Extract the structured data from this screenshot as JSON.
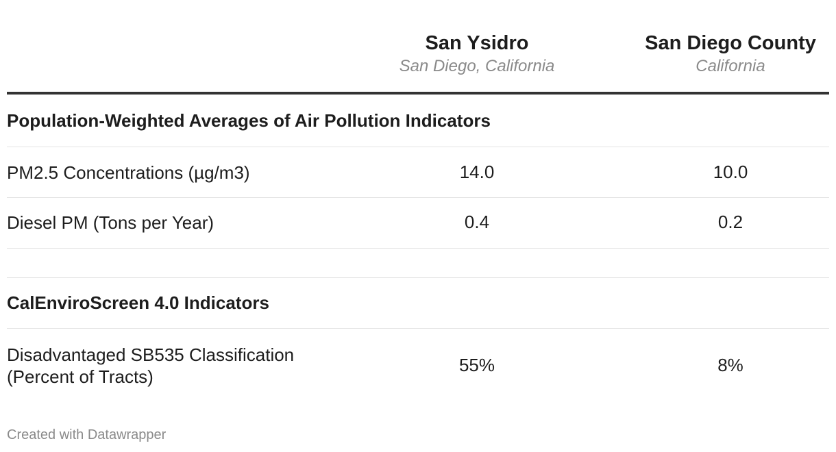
{
  "chart_data": {
    "type": "table",
    "columns": [
      {
        "title": "San Ysidro",
        "subtitle": "San Diego, California"
      },
      {
        "title": "San Diego County",
        "subtitle": "California"
      }
    ],
    "sections": [
      {
        "title": "Population-Weighted Averages of Air Pollution Indicators",
        "rows": [
          {
            "label": "PM2.5 Concentrations (µg/m3)",
            "values": [
              "14.0",
              "10.0"
            ]
          },
          {
            "label": "Diesel PM (Tons per Year)",
            "values": [
              "0.4",
              "0.2"
            ]
          }
        ]
      },
      {
        "title": "CalEnviroScreen 4.0 Indicators",
        "rows": [
          {
            "label_line1": "Disadvantaged SB535 Classification",
            "label_line2": "(Percent of Tracts)",
            "values": [
              "55%",
              "8%"
            ]
          }
        ]
      }
    ]
  },
  "footer": "Created with Datawrapper"
}
